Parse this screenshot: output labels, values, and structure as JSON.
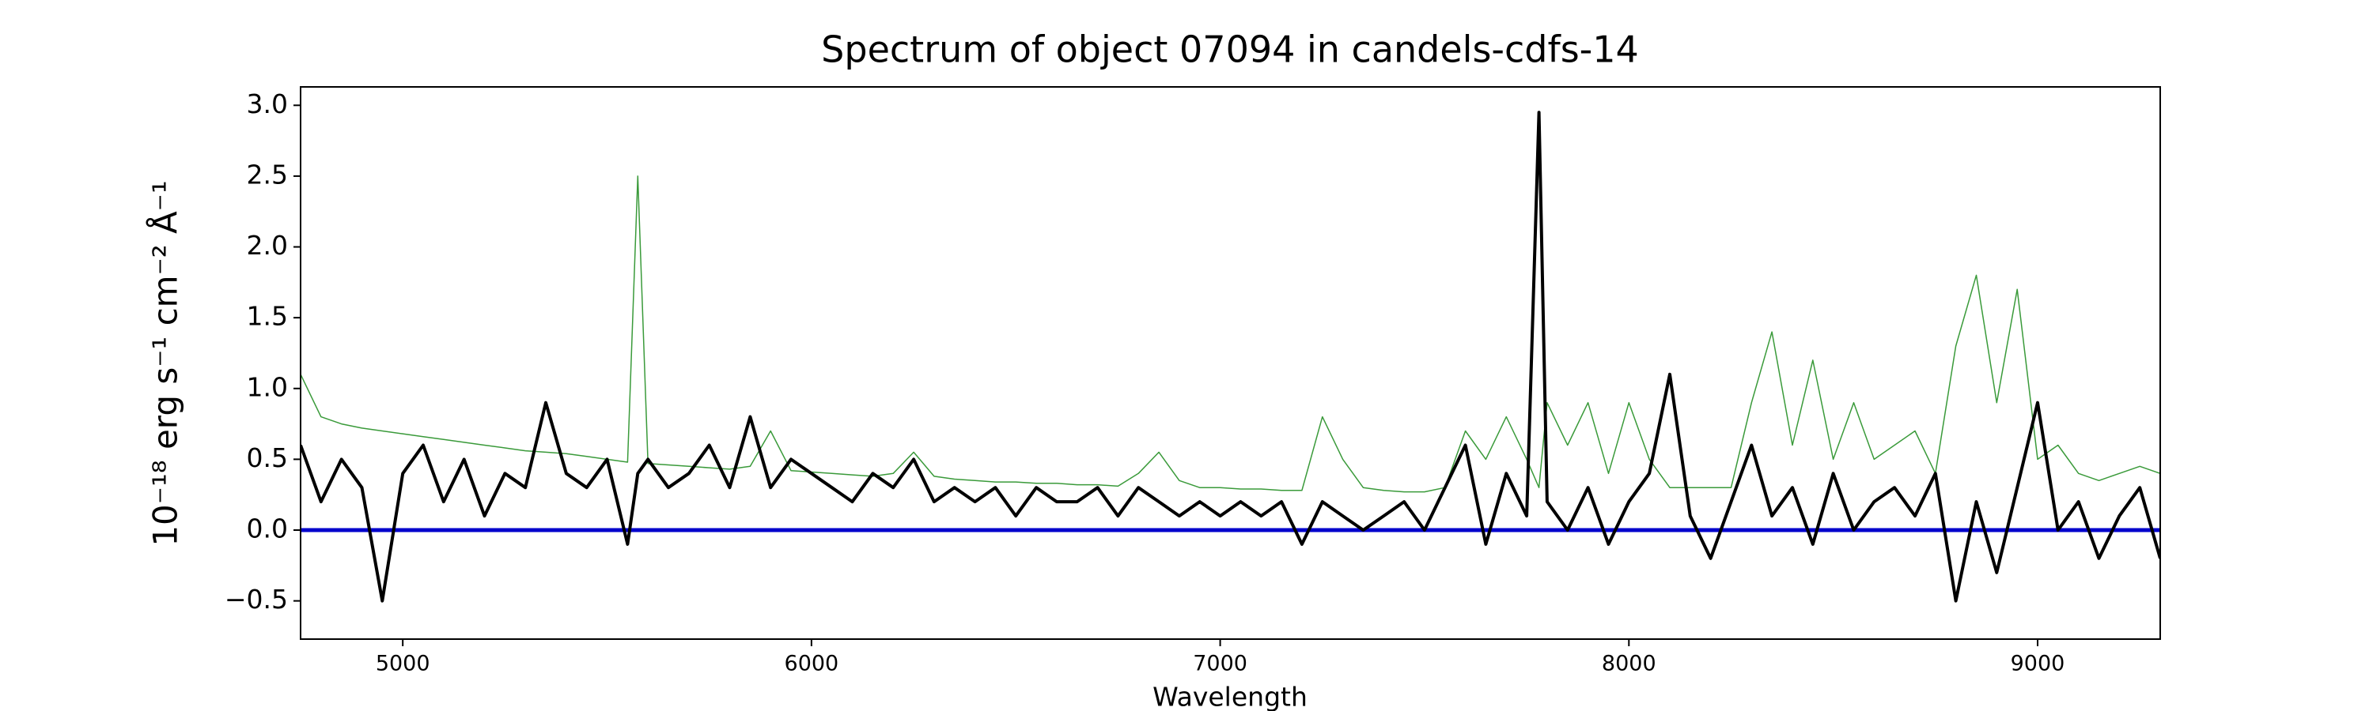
{
  "chart_data": {
    "type": "line",
    "title": "Spectrum of object 07094 in candels-cdfs-14",
    "x_label": "Wavelength",
    "y_label": "10⁻¹⁸ erg s⁻¹ cm⁻² Å⁻¹",
    "xlim": [
      4750,
      9300
    ],
    "ylim": [
      -0.77,
      3.13
    ],
    "xticks": [
      5000,
      6000,
      7000,
      8000,
      9000
    ],
    "yticks": [
      {
        "value": -0.5,
        "label": "−0.5"
      },
      {
        "value": 0,
        "label": "0.0"
      },
      {
        "value": 0.5,
        "label": "0.5"
      },
      {
        "value": 1,
        "label": "1.0"
      },
      {
        "value": 1.5,
        "label": "1.5"
      },
      {
        "value": 2,
        "label": "2.0"
      },
      {
        "value": 2.5,
        "label": "2.5"
      },
      {
        "value": 3,
        "label": "3.0"
      }
    ],
    "grid": false,
    "reference_line": {
      "value": 0,
      "color": "#0000cc"
    },
    "x": [
      4750,
      4800,
      4850,
      4900,
      4950,
      5000,
      5050,
      5100,
      5150,
      5200,
      5250,
      5300,
      5350,
      5400,
      5450,
      5500,
      5550,
      5575,
      5600,
      5650,
      5700,
      5750,
      5800,
      5850,
      5900,
      5950,
      6000,
      6050,
      6100,
      6150,
      6200,
      6250,
      6300,
      6350,
      6400,
      6450,
      6500,
      6550,
      6600,
      6650,
      6700,
      6750,
      6800,
      6850,
      6900,
      6950,
      7000,
      7050,
      7100,
      7150,
      7200,
      7250,
      7300,
      7350,
      7400,
      7450,
      7500,
      7550,
      7600,
      7650,
      7700,
      7750,
      7780,
      7800,
      7850,
      7900,
      7950,
      8000,
      8050,
      8100,
      8150,
      8200,
      8250,
      8300,
      8350,
      8400,
      8450,
      8500,
      8550,
      8600,
      8650,
      8700,
      8750,
      8800,
      8850,
      8900,
      8950,
      9000,
      9050,
      9100,
      9150,
      9200,
      9250,
      9300
    ],
    "series": [
      {
        "color": "#3a9a3a",
        "width": 1.5,
        "values": [
          1.1,
          0.8,
          0.75,
          0.72,
          0.7,
          0.68,
          0.66,
          0.64,
          0.62,
          0.6,
          0.58,
          0.56,
          0.55,
          0.54,
          0.52,
          0.5,
          0.48,
          2.5,
          0.47,
          0.46,
          0.45,
          0.44,
          0.43,
          0.45,
          0.7,
          0.42,
          0.41,
          0.4,
          0.39,
          0.38,
          0.4,
          0.55,
          0.38,
          0.36,
          0.35,
          0.34,
          0.34,
          0.33,
          0.33,
          0.32,
          0.32,
          0.31,
          0.4,
          0.55,
          0.35,
          0.3,
          0.3,
          0.29,
          0.29,
          0.28,
          0.28,
          0.8,
          0.5,
          0.3,
          0.28,
          0.27,
          0.27,
          0.3,
          0.7,
          0.5,
          0.8,
          0.5,
          0.3,
          0.9,
          0.6,
          0.9,
          0.4,
          0.9,
          0.5,
          0.3,
          0.3,
          0.3,
          0.3,
          0.9,
          1.4,
          0.6,
          1.2,
          0.5,
          0.9,
          0.5,
          0.6,
          0.7,
          0.4,
          1.3,
          1.8,
          0.9,
          1.7,
          0.5,
          0.6,
          0.4,
          0.35,
          0.4,
          0.45,
          0.4
        ]
      },
      {
        "color": "#000000",
        "width": 4,
        "values": [
          0.6,
          0.2,
          0.5,
          0.3,
          -0.5,
          0.4,
          0.6,
          0.2,
          0.5,
          0.1,
          0.4,
          0.3,
          0.9,
          0.4,
          0.3,
          0.5,
          -0.1,
          0.4,
          0.5,
          0.3,
          0.4,
          0.6,
          0.3,
          0.8,
          0.3,
          0.5,
          0.4,
          0.3,
          0.2,
          0.4,
          0.3,
          0.5,
          0.2,
          0.3,
          0.2,
          0.3,
          0.1,
          0.3,
          0.2,
          0.2,
          0.3,
          0.1,
          0.3,
          0.2,
          0.1,
          0.2,
          0.1,
          0.2,
          0.1,
          0.2,
          -0.1,
          0.2,
          0.1,
          0.0,
          0.1,
          0.2,
          0.0,
          0.3,
          0.6,
          -0.1,
          0.4,
          0.1,
          2.95,
          0.2,
          0.0,
          0.3,
          -0.1,
          0.2,
          0.4,
          1.1,
          0.1,
          -0.2,
          0.2,
          0.6,
          0.1,
          0.3,
          -0.1,
          0.4,
          0.0,
          0.2,
          0.3,
          0.1,
          0.4,
          -0.5,
          0.2,
          -0.3,
          0.3,
          0.9,
          0.0,
          0.2,
          -0.2,
          0.1,
          0.3,
          -0.2
        ]
      }
    ]
  }
}
